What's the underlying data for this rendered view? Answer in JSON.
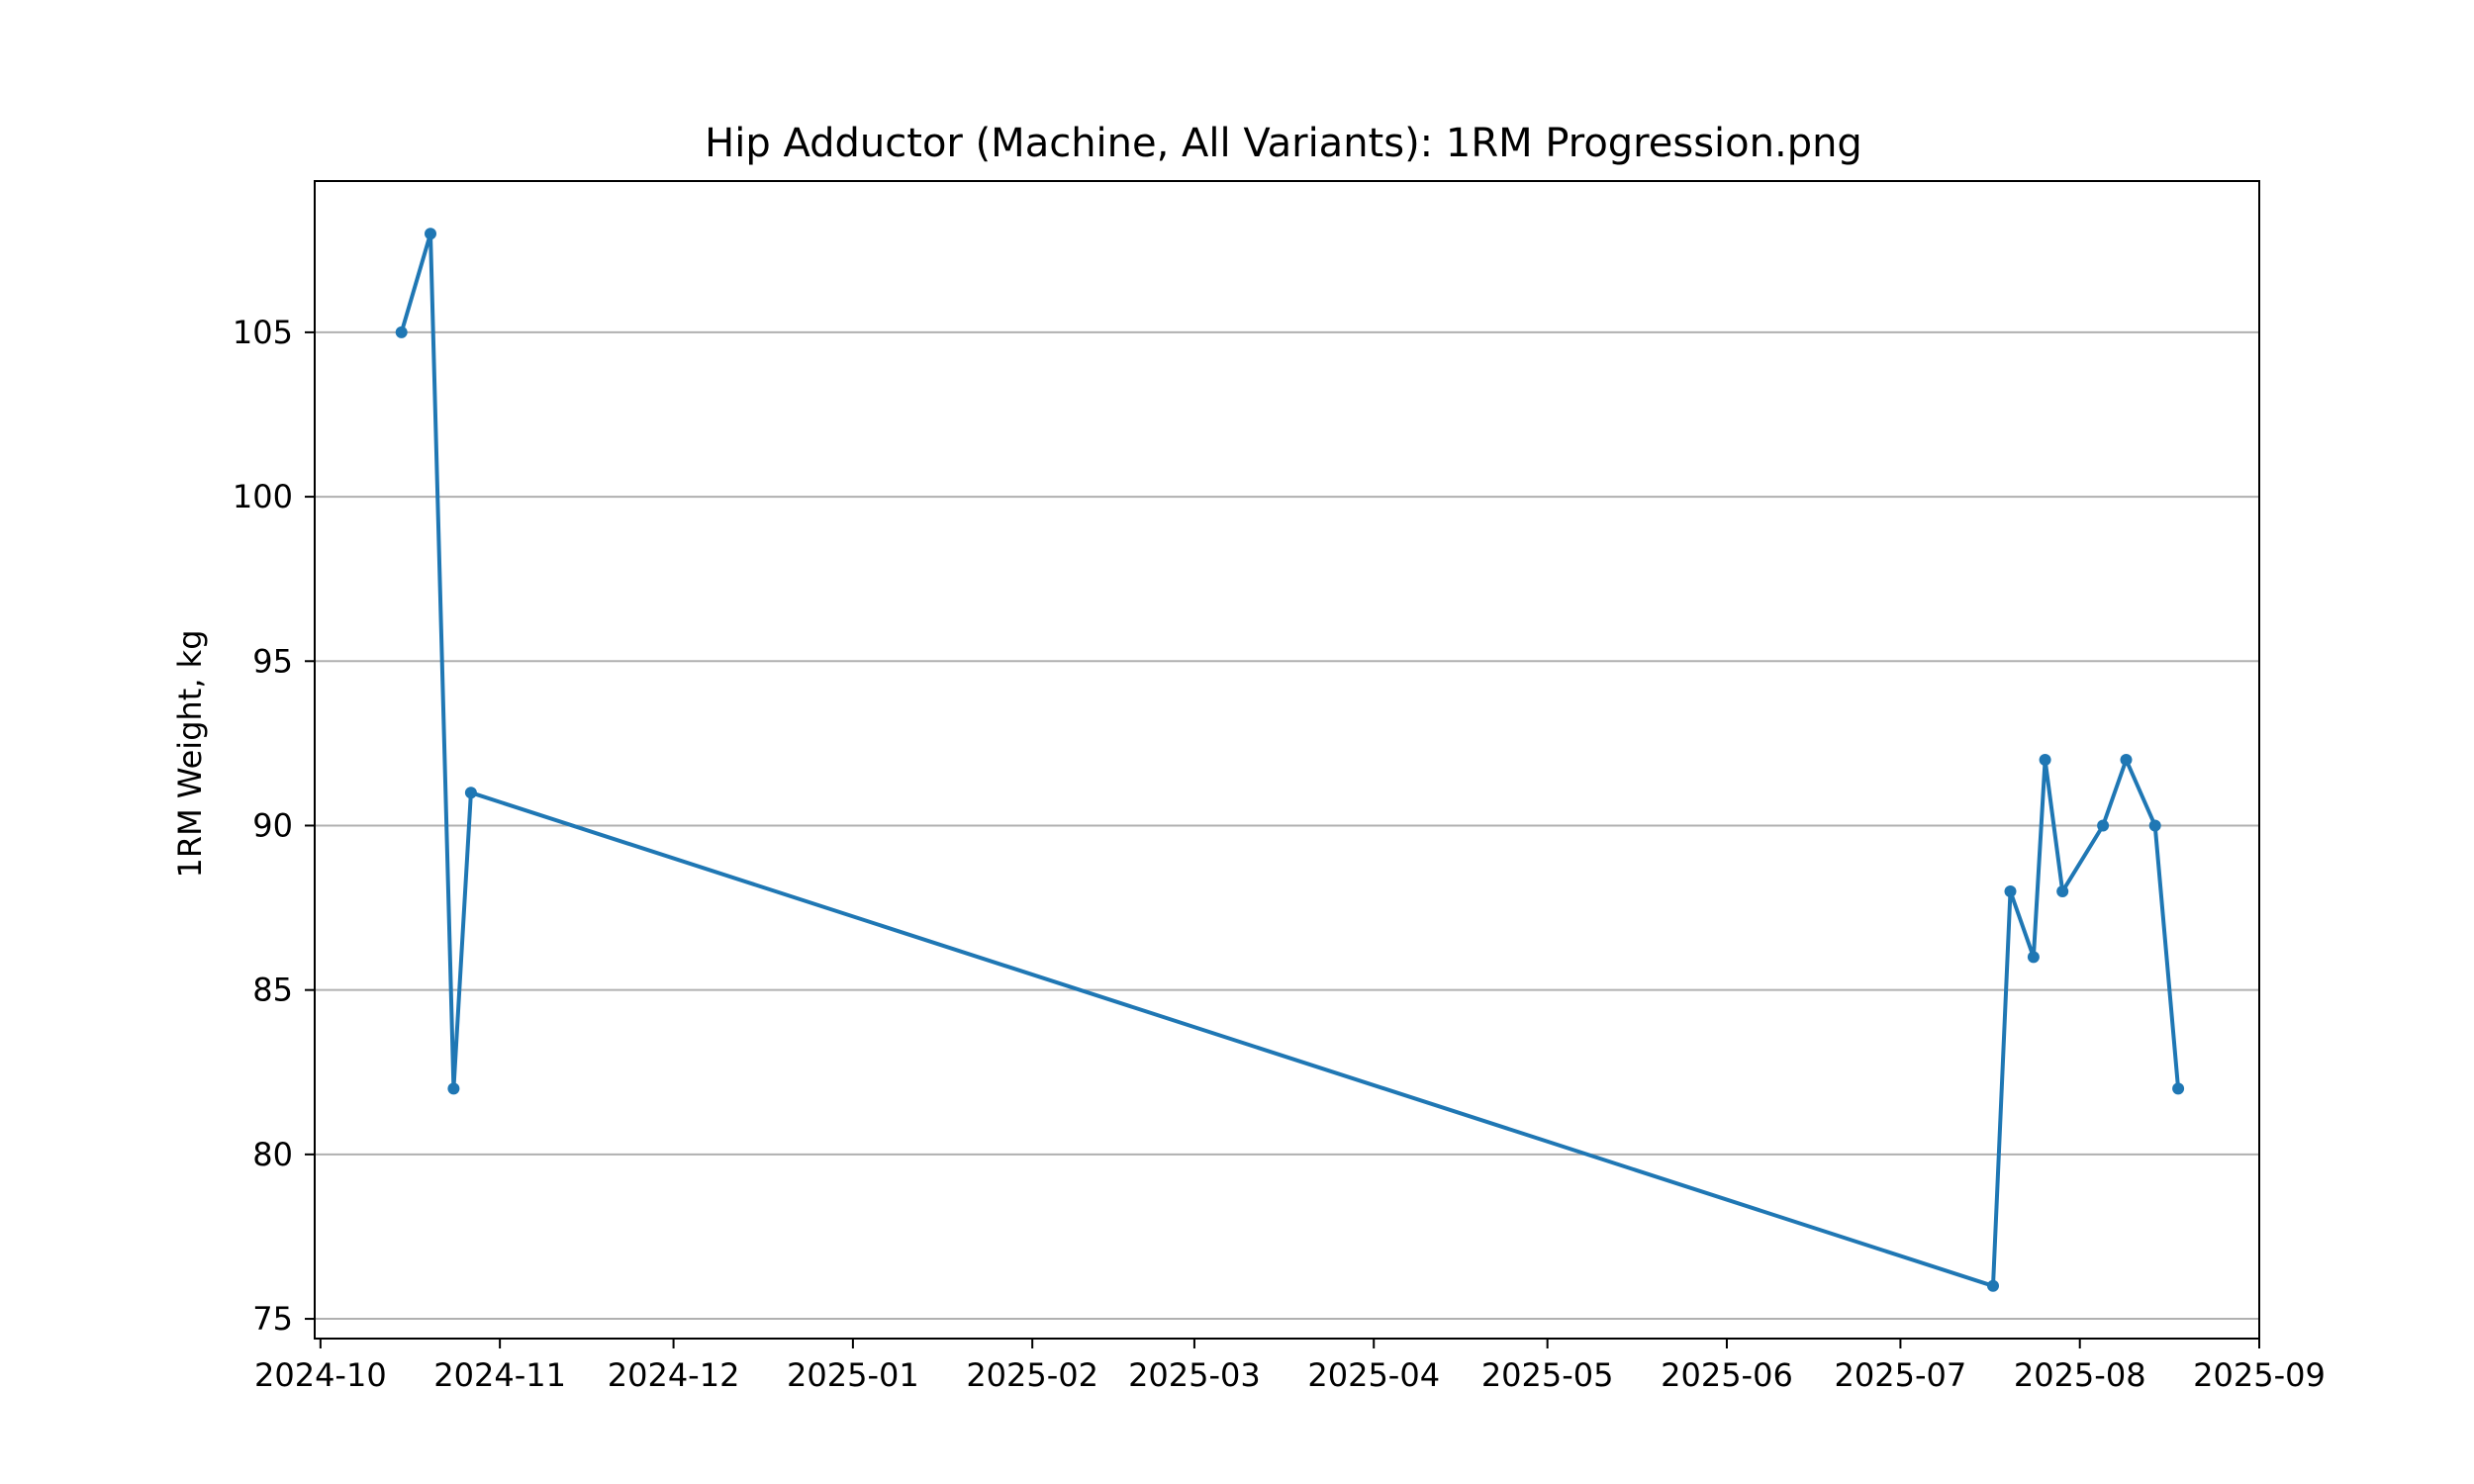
{
  "chart_data": {
    "type": "line",
    "title": "Hip Adductor (Machine, All Variants): 1RM Progression.png",
    "xlabel": "",
    "ylabel": "1RM Weight, kg",
    "x_ticks": [
      "2024-10",
      "2024-11",
      "2024-12",
      "2025-01",
      "2025-02",
      "2025-03",
      "2025-04",
      "2025-05",
      "2025-06",
      "2025-07",
      "2025-08",
      "2025-09"
    ],
    "y_ticks": [
      75,
      80,
      85,
      90,
      95,
      100,
      105
    ],
    "xlim": [
      "2024-09-30",
      "2025-09-01"
    ],
    "ylim": [
      74.4,
      109.6
    ],
    "grid": "y",
    "line_color": "#1f77b4",
    "series": [
      {
        "points": [
          {
            "x": "2024-10-15",
            "y": 105
          },
          {
            "x": "2024-10-20",
            "y": 108
          },
          {
            "x": "2024-10-24",
            "y": 82
          },
          {
            "x": "2024-10-27",
            "y": 91
          },
          {
            "x": "2025-07-17",
            "y": 76
          },
          {
            "x": "2025-07-20",
            "y": 88
          },
          {
            "x": "2025-07-24",
            "y": 86
          },
          {
            "x": "2025-07-26",
            "y": 92
          },
          {
            "x": "2025-07-29",
            "y": 88
          },
          {
            "x": "2025-08-05",
            "y": 90
          },
          {
            "x": "2025-08-09",
            "y": 92
          },
          {
            "x": "2025-08-14",
            "y": 90
          },
          {
            "x": "2025-08-18",
            "y": 82
          }
        ]
      }
    ]
  }
}
